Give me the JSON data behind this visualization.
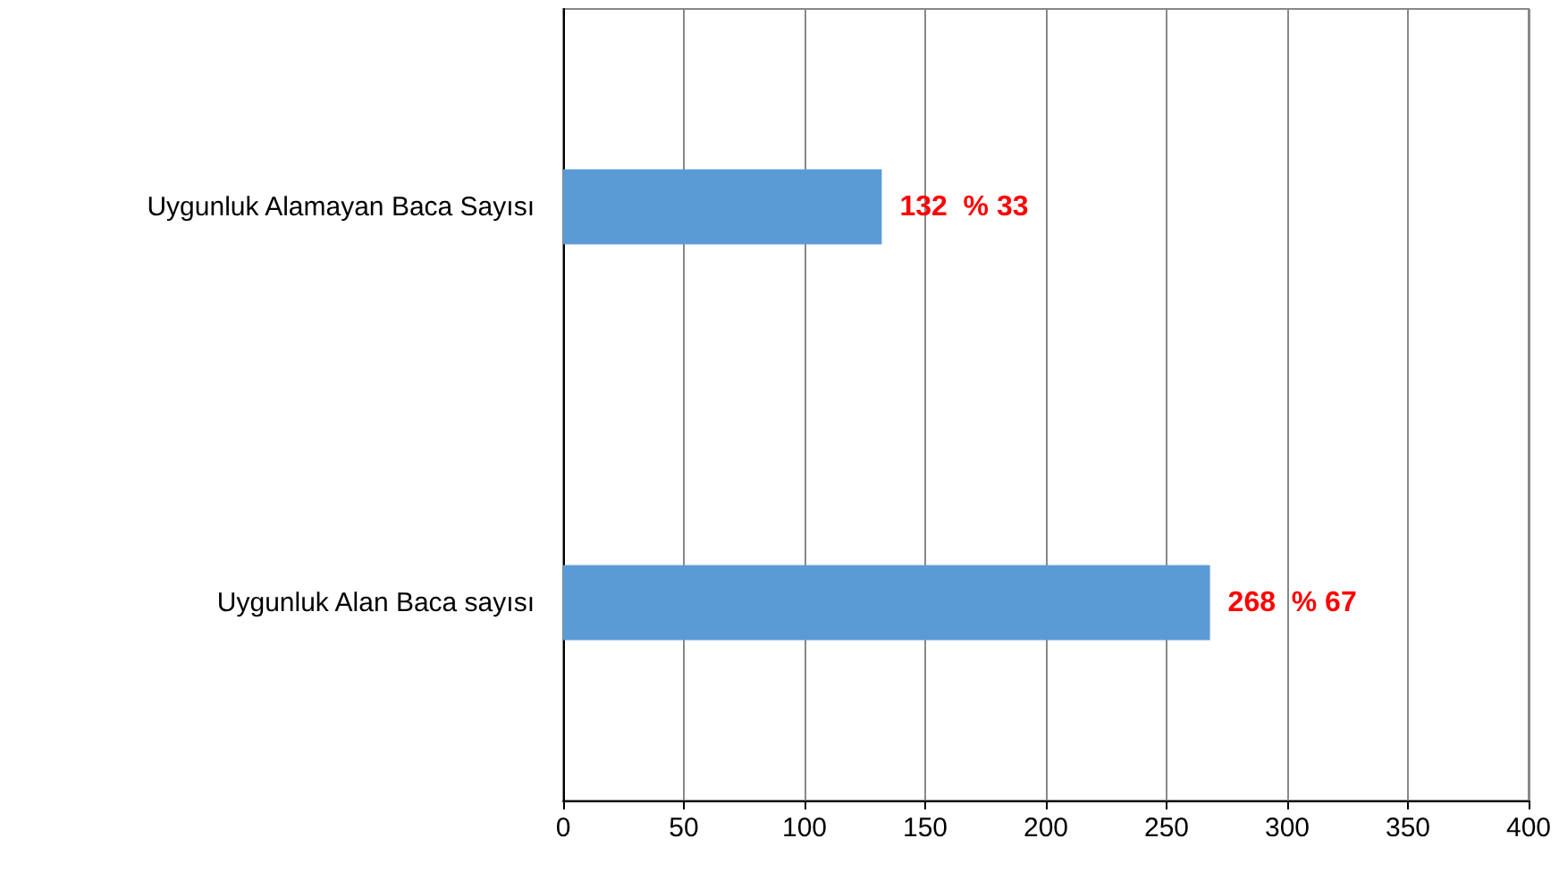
{
  "chart_data": {
    "type": "bar",
    "orientation": "horizontal",
    "categories": [
      "Uygunluk Alamayan Baca Sayısı",
      "Uygunluk Alan Baca sayısı"
    ],
    "values": [
      132,
      268
    ],
    "value_labels": [
      "132  % 33",
      "268  % 67"
    ],
    "color": "#5b9bd5",
    "xlim": [
      0,
      400
    ],
    "xticks": [
      0,
      50,
      100,
      150,
      200,
      250,
      300,
      350,
      400
    ],
    "grid": "x"
  }
}
